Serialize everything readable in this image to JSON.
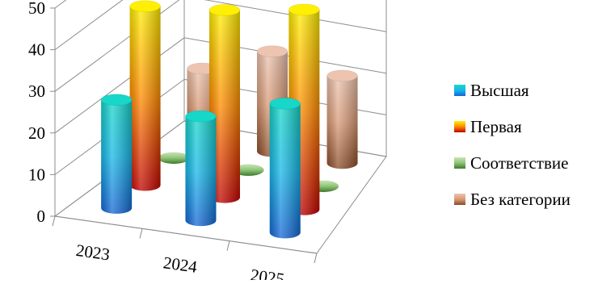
{
  "chart_data": {
    "type": "bar",
    "subtype": "3d-cylinder",
    "title": "",
    "xlabel": "",
    "ylabel": "",
    "categories": [
      "2023",
      "2024",
      "2025"
    ],
    "ylim": [
      0,
      50
    ],
    "yticks": [
      "0",
      "10",
      "20",
      "30",
      "40",
      "50"
    ],
    "grid": true,
    "legend_position": "right",
    "series": [
      {
        "name": "Высшая",
        "values": [
          26,
          25,
          31
        ],
        "colors": {
          "top": "#16d7c9",
          "mid": "#17b8e8",
          "bottom": "#1565d6"
        }
      },
      {
        "name": "Первая",
        "values": [
          43,
          45,
          48
        ],
        "colors": {
          "top": "#ffef00",
          "mid": "#ff8a00",
          "bottom": "#c00000"
        }
      },
      {
        "name": "Соответствие",
        "values": [
          1,
          1,
          0
        ],
        "colors": {
          "top": "#c6e7b2",
          "mid": "#8fc277",
          "bottom": "#3e7b2c"
        }
      },
      {
        "name": "Без категории",
        "values": [
          17,
          24,
          21
        ],
        "colors": {
          "top": "#ecc4b0",
          "mid": "#d99a76",
          "bottom": "#8a4a26"
        }
      }
    ]
  }
}
